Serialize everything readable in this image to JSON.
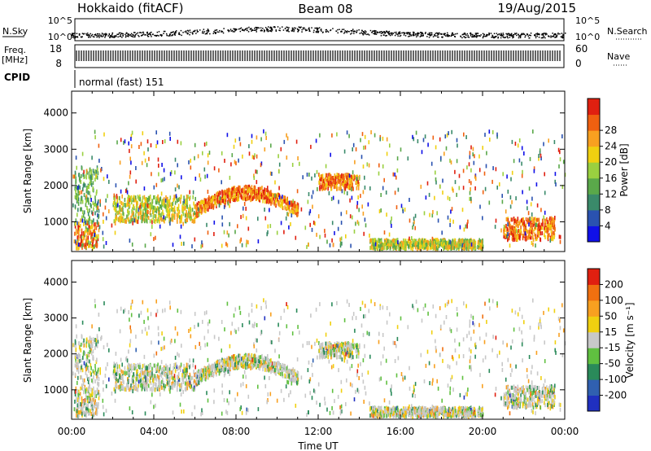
{
  "header": {
    "station": "Hokkaido (fitACF)",
    "beam": "Beam 08",
    "date": "19/Aug/2015"
  },
  "strips": {
    "nsky_label": "N.Sky",
    "nsky_ticks": [
      "10^5",
      "10^0"
    ],
    "nsearch_label": "N.Search",
    "nsearch_ticks": [
      "10^5",
      "10^0"
    ],
    "freq_label_1": "Freq.",
    "freq_label_2": "[MHz]",
    "freq_ticks": [
      "18",
      "8"
    ],
    "nave_label": "Nave",
    "nave_ticks": [
      "60",
      "0"
    ],
    "cpid_label": "CPID",
    "cpid_value": "normal (fast) 151"
  },
  "chart_data": [
    {
      "type": "heatmap",
      "panel": "power",
      "ylabel": "Slant Range [km]",
      "yticks": [
        "1000",
        "2000",
        "3000",
        "4000"
      ],
      "ylim": [
        180,
        4600
      ],
      "xlim_hours": [
        0,
        24
      ],
      "colorbar_label": "Power [dB]",
      "colorbar_ticks": [
        "4",
        "8",
        "12",
        "16",
        "20",
        "24",
        "28"
      ],
      "colorbar_colors": [
        "#1010e8",
        "#2a52b0",
        "#3a8a6a",
        "#5aa84a",
        "#9ad040",
        "#f0d010",
        "#f8a020",
        "#f06010",
        "#e02010"
      ],
      "features": [
        {
          "t": [
            0.1,
            1.3
          ],
          "range": [
            250,
            1000
          ],
          "level": "mixed-high"
        },
        {
          "t": [
            0.1,
            1.3
          ],
          "range": [
            1000,
            2500
          ],
          "level": "low"
        },
        {
          "t": [
            2.0,
            6.0
          ],
          "range": [
            1000,
            1700
          ],
          "level": "mid"
        },
        {
          "t": [
            6.0,
            11.0
          ],
          "range": [
            1300,
            2200
          ],
          "level": "high"
        },
        {
          "t": [
            12.0,
            14.0
          ],
          "range": [
            1900,
            2300
          ],
          "level": "high"
        },
        {
          "t": [
            14.5,
            20.0
          ],
          "range": [
            250,
            500
          ],
          "level": "mid"
        },
        {
          "t": [
            21.0,
            23.5
          ],
          "range": [
            500,
            1100
          ],
          "level": "high"
        }
      ]
    },
    {
      "type": "heatmap",
      "panel": "velocity",
      "ylabel": "Slant Range [km]",
      "yticks": [
        "1000",
        "2000",
        "3000",
        "4000"
      ],
      "ylim": [
        180,
        4600
      ],
      "xlim_hours": [
        0,
        24
      ],
      "xticks": [
        "00:00",
        "04:00",
        "08:00",
        "12:00",
        "16:00",
        "20:00",
        "00:00"
      ],
      "xlabel": "Time UT",
      "colorbar_label": "Velocity [m s⁻¹]",
      "colorbar_ticks": [
        "200",
        "100",
        "50",
        "15",
        "-15",
        "-50",
        "-100",
        "-200"
      ],
      "colorbar_colors": [
        "#2030c0",
        "#3060b0",
        "#2a8a5a",
        "#60c040",
        "#c8c8c8",
        "#f0d010",
        "#f8a020",
        "#f07010",
        "#e02010"
      ]
    }
  ]
}
